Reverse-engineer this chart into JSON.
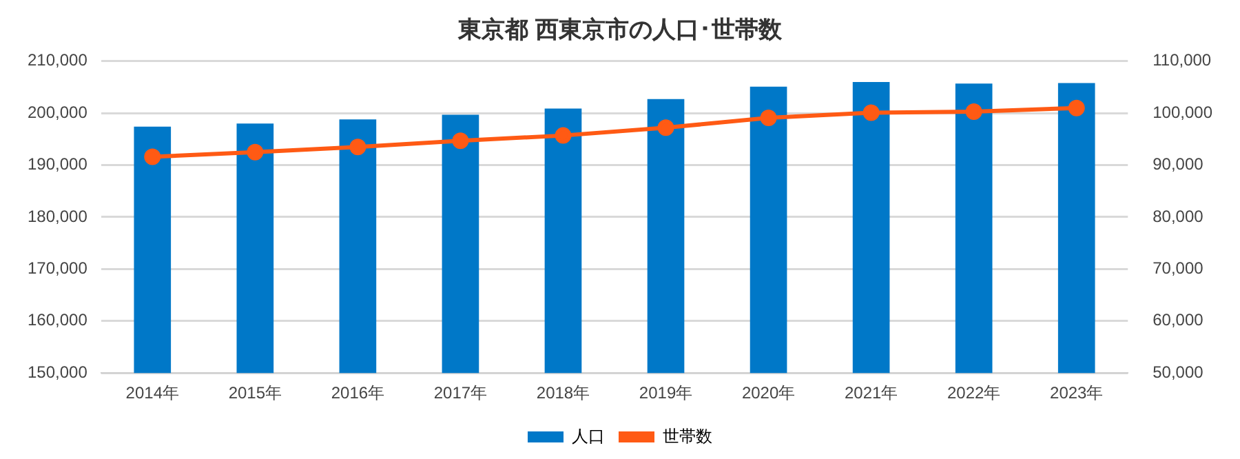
{
  "chart_data": {
    "type": "bar",
    "title": "東京都 西東京市の人口･世帯数",
    "categories": [
      "2014年",
      "2015年",
      "2016年",
      "2017年",
      "2018年",
      "2019年",
      "2020年",
      "2021年",
      "2022年",
      "2023年"
    ],
    "series": [
      {
        "name": "人口",
        "color": "#0078c8",
        "values": [
          197400,
          198000,
          198800,
          199700,
          200900,
          202700,
          205100,
          206000,
          205700,
          205800
        ]
      },
      {
        "name": "世帯数",
        "type": "line",
        "axis": "y2",
        "color": "#ff5a14",
        "marker": "circle",
        "values": [
          91600,
          92500,
          93500,
          94700,
          95700,
          97200,
          99100,
          100100,
          100300,
          101000
        ]
      }
    ],
    "ylim": [
      150000,
      210000
    ],
    "yticks": [
      {
        "value": 150000,
        "label": "150,000"
      },
      {
        "value": 160000,
        "label": "160,000"
      },
      {
        "value": 170000,
        "label": "170,000"
      },
      {
        "value": 180000,
        "label": "180,000"
      },
      {
        "value": 190000,
        "label": "190,000"
      },
      {
        "value": 200000,
        "label": "200,000"
      },
      {
        "value": 210000,
        "label": "210,000"
      }
    ],
    "y2lim": [
      50000,
      110000
    ],
    "y2ticks": [
      {
        "value": 50000,
        "label": "50,000"
      },
      {
        "value": 60000,
        "label": "60,000"
      },
      {
        "value": 70000,
        "label": "70,000"
      },
      {
        "value": 80000,
        "label": "80,000"
      },
      {
        "value": 90000,
        "label": "90,000"
      },
      {
        "value": 100000,
        "label": "100,000"
      },
      {
        "value": 110000,
        "label": "110,000"
      }
    ],
    "grid": "y",
    "legend": "bottom"
  }
}
